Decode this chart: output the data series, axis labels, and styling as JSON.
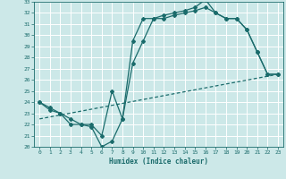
{
  "xlabel": "Humidex (Indice chaleur)",
  "bg_color": "#cce8e8",
  "grid_color": "#ffffff",
  "line_color": "#1a6b6b",
  "xlim": [
    -0.5,
    23.5
  ],
  "ylim": [
    20,
    33
  ],
  "xticks": [
    0,
    1,
    2,
    3,
    4,
    5,
    6,
    7,
    8,
    9,
    10,
    11,
    12,
    13,
    14,
    15,
    16,
    17,
    18,
    19,
    20,
    21,
    22,
    23
  ],
  "yticks": [
    20,
    21,
    22,
    23,
    24,
    25,
    26,
    27,
    28,
    29,
    30,
    31,
    32,
    33
  ],
  "line1_x": [
    0,
    1,
    2,
    3,
    4,
    5,
    6,
    7,
    8,
    9,
    10,
    11,
    12,
    13,
    14,
    15,
    16,
    17,
    18,
    19,
    20,
    21,
    22,
    23
  ],
  "line1_y": [
    24.0,
    23.5,
    23.0,
    22.5,
    22.0,
    22.0,
    21.0,
    25.0,
    22.5,
    29.5,
    31.5,
    31.5,
    31.8,
    32.0,
    32.2,
    32.5,
    33.2,
    32.0,
    31.5,
    31.5,
    30.5,
    28.5,
    26.5,
    26.5
  ],
  "line2_x": [
    0,
    1,
    2,
    3,
    4,
    5,
    6,
    7,
    8,
    9,
    10,
    11,
    12,
    13,
    14,
    15,
    16,
    17,
    18,
    19,
    20,
    21,
    22,
    23
  ],
  "line2_y": [
    24.0,
    23.3,
    23.0,
    22.0,
    22.0,
    21.8,
    20.0,
    20.5,
    22.5,
    27.5,
    29.5,
    31.5,
    31.5,
    31.8,
    32.0,
    32.2,
    32.5,
    32.0,
    31.5,
    31.5,
    30.5,
    28.5,
    26.5,
    26.5
  ],
  "line3_x": [
    0,
    23
  ],
  "line3_y": [
    22.5,
    26.5
  ]
}
